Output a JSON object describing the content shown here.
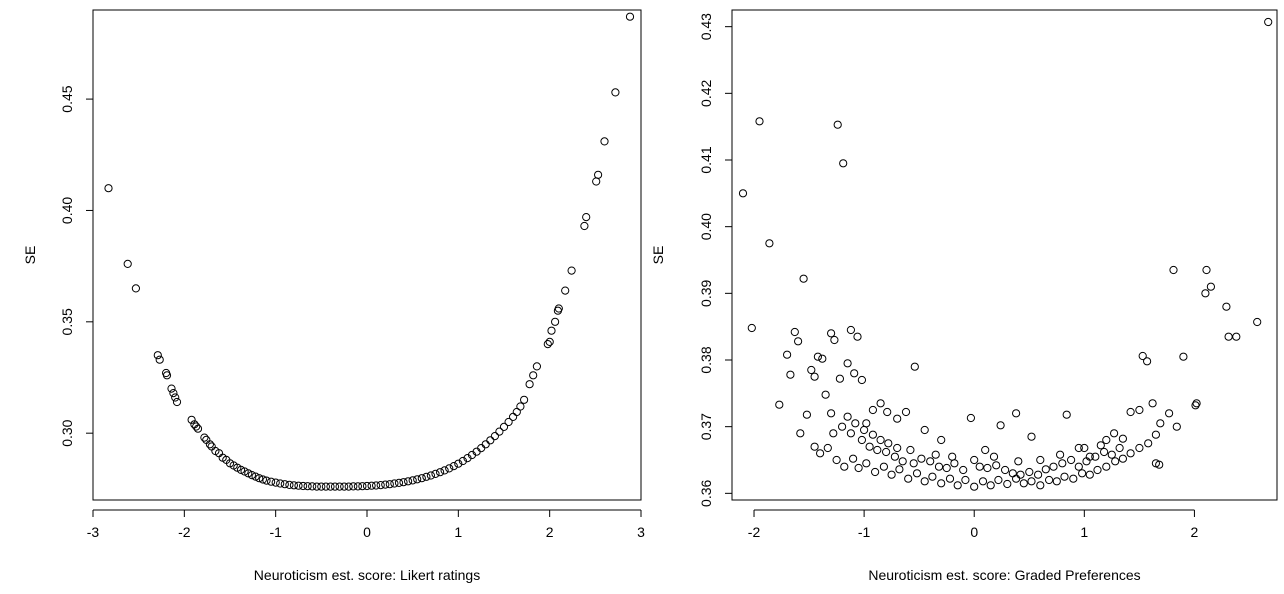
{
  "chart_data": [
    {
      "type": "scatter",
      "title": "",
      "xlabel": "Neuroticism est. score: Likert ratings",
      "ylabel": "SE",
      "xlim": [
        -3.0,
        3.0
      ],
      "ylim": [
        0.27,
        0.49
      ],
      "xticks": [
        -3,
        -2,
        -1,
        0,
        1,
        2,
        3
      ],
      "xtick_labels": [
        "-3",
        "-2",
        "-1",
        "0",
        "1",
        "2",
        "3"
      ],
      "yticks": [
        0.3,
        0.35,
        0.4,
        0.45
      ],
      "ytick_labels": [
        "0.30",
        "0.35",
        "0.40",
        "0.45"
      ],
      "grid": false,
      "legend": "none",
      "marker": "open-circle",
      "points": [
        [
          -2.83,
          0.41
        ],
        [
          -2.62,
          0.376
        ],
        [
          -2.53,
          0.365
        ],
        [
          -2.29,
          0.335
        ],
        [
          -2.27,
          0.333
        ],
        [
          -2.2,
          0.327
        ],
        [
          -2.19,
          0.326
        ],
        [
          -2.14,
          0.32
        ],
        [
          -2.12,
          0.318
        ],
        [
          -2.1,
          0.316
        ],
        [
          -2.08,
          0.314
        ],
        [
          -1.92,
          0.306
        ],
        [
          -1.89,
          0.304
        ],
        [
          -1.87,
          0.303
        ],
        [
          -1.85,
          0.302
        ],
        [
          -1.78,
          0.298
        ],
        [
          -1.76,
          0.297
        ],
        [
          -1.72,
          0.295
        ],
        [
          -1.7,
          0.294
        ],
        [
          -1.66,
          0.292
        ],
        [
          -1.62,
          0.291
        ],
        [
          -1.58,
          0.289
        ],
        [
          -1.54,
          0.288
        ],
        [
          -1.5,
          0.2865
        ],
        [
          -1.46,
          0.2855
        ],
        [
          -1.42,
          0.2845
        ],
        [
          -1.38,
          0.2835
        ],
        [
          -1.34,
          0.2828
        ],
        [
          -1.3,
          0.282
        ],
        [
          -1.26,
          0.2812
        ],
        [
          -1.22,
          0.2805
        ],
        [
          -1.18,
          0.2798
        ],
        [
          -1.14,
          0.2792
        ],
        [
          -1.1,
          0.2787
        ],
        [
          -1.05,
          0.2782
        ],
        [
          -1.0,
          0.2778
        ],
        [
          -0.95,
          0.2774
        ],
        [
          -0.9,
          0.2771
        ],
        [
          -0.85,
          0.2768
        ],
        [
          -0.8,
          0.2766
        ],
        [
          -0.75,
          0.2764
        ],
        [
          -0.7,
          0.2763
        ],
        [
          -0.65,
          0.2762
        ],
        [
          -0.6,
          0.2761
        ],
        [
          -0.55,
          0.276
        ],
        [
          -0.5,
          0.276
        ],
        [
          -0.45,
          0.276
        ],
        [
          -0.4,
          0.276
        ],
        [
          -0.35,
          0.276
        ],
        [
          -0.3,
          0.276
        ],
        [
          -0.25,
          0.276
        ],
        [
          -0.2,
          0.276
        ],
        [
          -0.15,
          0.2761
        ],
        [
          -0.1,
          0.2761
        ],
        [
          -0.05,
          0.2762
        ],
        [
          0.0,
          0.2763
        ],
        [
          0.05,
          0.2764
        ],
        [
          0.1,
          0.2765
        ],
        [
          0.15,
          0.2767
        ],
        [
          0.2,
          0.2769
        ],
        [
          0.25,
          0.2771
        ],
        [
          0.3,
          0.2774
        ],
        [
          0.35,
          0.2777
        ],
        [
          0.4,
          0.278
        ],
        [
          0.45,
          0.2784
        ],
        [
          0.5,
          0.2788
        ],
        [
          0.55,
          0.2793
        ],
        [
          0.6,
          0.2798
        ],
        [
          0.65,
          0.2804
        ],
        [
          0.7,
          0.281
        ],
        [
          0.75,
          0.2817
        ],
        [
          0.8,
          0.2825
        ],
        [
          0.85,
          0.2833
        ],
        [
          0.9,
          0.2842
        ],
        [
          0.95,
          0.2852
        ],
        [
          1.0,
          0.2863
        ],
        [
          1.05,
          0.2875
        ],
        [
          1.1,
          0.2888
        ],
        [
          1.15,
          0.2902
        ],
        [
          1.2,
          0.2917
        ],
        [
          1.25,
          0.2933
        ],
        [
          1.3,
          0.295
        ],
        [
          1.35,
          0.2968
        ],
        [
          1.4,
          0.2987
        ],
        [
          1.45,
          0.3007
        ],
        [
          1.5,
          0.3028
        ],
        [
          1.55,
          0.305
        ],
        [
          1.6,
          0.3073
        ],
        [
          1.64,
          0.3095
        ],
        [
          1.68,
          0.312
        ],
        [
          1.72,
          0.315
        ],
        [
          1.78,
          0.322
        ],
        [
          1.82,
          0.326
        ],
        [
          1.86,
          0.33
        ],
        [
          1.98,
          0.34
        ],
        [
          2.0,
          0.341
        ],
        [
          2.02,
          0.346
        ],
        [
          2.06,
          0.35
        ],
        [
          2.09,
          0.355
        ],
        [
          2.1,
          0.356
        ],
        [
          2.17,
          0.364
        ],
        [
          2.24,
          0.373
        ],
        [
          2.38,
          0.393
        ],
        [
          2.4,
          0.397
        ],
        [
          2.51,
          0.413
        ],
        [
          2.53,
          0.416
        ],
        [
          2.6,
          0.431
        ],
        [
          2.72,
          0.453
        ],
        [
          2.88,
          0.487
        ]
      ]
    },
    {
      "type": "scatter",
      "title": "",
      "xlabel": "Neuroticism est. score: Graded Preferences",
      "ylabel": "SE",
      "xlim": [
        -2.2,
        2.75
      ],
      "ylim": [
        0.359,
        0.4325
      ],
      "xticks": [
        -2,
        -1,
        0,
        1,
        2
      ],
      "xtick_labels": [
        "-2",
        "-1",
        "0",
        "1",
        "2"
      ],
      "yticks": [
        0.36,
        0.37,
        0.38,
        0.39,
        0.4,
        0.41,
        0.42,
        0.43
      ],
      "ytick_labels": [
        "0.36",
        "0.37",
        "0.38",
        "0.39",
        "0.40",
        "0.41",
        "0.42",
        "0.43"
      ],
      "grid": false,
      "legend": "none",
      "marker": "open-circle",
      "points": [
        [
          -2.1,
          0.405
        ],
        [
          -2.02,
          0.3848
        ],
        [
          -1.95,
          0.4158
        ],
        [
          -1.86,
          0.3975
        ],
        [
          -1.77,
          0.3733
        ],
        [
          -1.7,
          0.3808
        ],
        [
          -1.67,
          0.3778
        ],
        [
          -1.63,
          0.3842
        ],
        [
          -1.6,
          0.3828
        ],
        [
          -1.58,
          0.369
        ],
        [
          -1.55,
          0.3922
        ],
        [
          -1.52,
          0.3718
        ],
        [
          -1.48,
          0.3785
        ],
        [
          -1.45,
          0.3775
        ],
        [
          -1.42,
          0.3805
        ],
        [
          -1.38,
          0.3802
        ],
        [
          -1.35,
          0.3748
        ],
        [
          -1.3,
          0.384
        ],
        [
          -1.27,
          0.383
        ],
        [
          -1.24,
          0.4153
        ],
        [
          -1.22,
          0.3772
        ],
        [
          -1.19,
          0.4095
        ],
        [
          -1.15,
          0.3795
        ],
        [
          -1.12,
          0.3845
        ],
        [
          -1.09,
          0.378
        ],
        [
          -1.06,
          0.3835
        ],
        [
          -1.02,
          0.377
        ],
        [
          -0.98,
          0.3705
        ],
        [
          -0.92,
          0.3725
        ],
        [
          -0.85,
          0.3735
        ],
        [
          -0.79,
          0.3722
        ],
        [
          -0.7,
          0.3712
        ],
        [
          -0.62,
          0.3722
        ],
        [
          -0.54,
          0.379
        ],
        [
          -0.45,
          0.3695
        ],
        [
          -0.3,
          0.368
        ],
        [
          -0.03,
          0.3713
        ],
        [
          0.1,
          0.3665
        ],
        [
          0.24,
          0.3702
        ],
        [
          0.38,
          0.372
        ],
        [
          0.52,
          0.3685
        ],
        [
          0.84,
          0.3718
        ],
        [
          0.95,
          0.3668
        ],
        [
          1.05,
          0.3655
        ],
        [
          1.15,
          0.3672
        ],
        [
          1.27,
          0.369
        ],
        [
          1.35,
          0.3682
        ],
        [
          1.42,
          0.3722
        ],
        [
          1.5,
          0.3725
        ],
        [
          1.53,
          0.3806
        ],
        [
          1.57,
          0.3798
        ],
        [
          1.62,
          0.3735
        ],
        [
          1.65,
          0.3688
        ],
        [
          1.69,
          0.3705
        ],
        [
          1.77,
          0.372
        ],
        [
          1.81,
          0.3935
        ],
        [
          1.84,
          0.37
        ],
        [
          1.9,
          0.3805
        ],
        [
          2.01,
          0.3732
        ],
        [
          2.02,
          0.3735
        ],
        [
          2.1,
          0.39
        ],
        [
          2.11,
          0.3935
        ],
        [
          2.15,
          0.391
        ],
        [
          2.29,
          0.388
        ],
        [
          2.31,
          0.3835
        ],
        [
          2.38,
          0.3835
        ],
        [
          2.57,
          0.3857
        ],
        [
          2.67,
          0.4307
        ],
        [
          -1.45,
          0.367
        ],
        [
          -1.4,
          0.366
        ],
        [
          -1.33,
          0.3668
        ],
        [
          -1.25,
          0.365
        ],
        [
          -1.18,
          0.364
        ],
        [
          -1.1,
          0.3652
        ],
        [
          -1.05,
          0.3638
        ],
        [
          -0.98,
          0.3645
        ],
        [
          -0.9,
          0.3632
        ],
        [
          -0.82,
          0.364
        ],
        [
          -0.75,
          0.3628
        ],
        [
          -0.68,
          0.3636
        ],
        [
          -0.6,
          0.3622
        ],
        [
          -0.52,
          0.363
        ],
        [
          -0.45,
          0.3618
        ],
        [
          -0.38,
          0.3625
        ],
        [
          -0.3,
          0.3615
        ],
        [
          -0.22,
          0.3622
        ],
        [
          -0.15,
          0.3612
        ],
        [
          -0.08,
          0.362
        ],
        [
          0.0,
          0.361
        ],
        [
          0.08,
          0.3618
        ],
        [
          0.15,
          0.3612
        ],
        [
          0.22,
          0.362
        ],
        [
          0.3,
          0.3614
        ],
        [
          0.38,
          0.3622
        ],
        [
          0.45,
          0.3615
        ],
        [
          0.52,
          0.3618
        ],
        [
          0.6,
          0.3612
        ],
        [
          0.68,
          0.362
        ],
        [
          0.75,
          0.3618
        ],
        [
          0.82,
          0.3625
        ],
        [
          0.9,
          0.3622
        ],
        [
          0.98,
          0.363
        ],
        [
          1.05,
          0.3628
        ],
        [
          1.12,
          0.3635
        ],
        [
          1.2,
          0.364
        ],
        [
          1.28,
          0.3648
        ],
        [
          1.35,
          0.3652
        ],
        [
          1.42,
          0.366
        ],
        [
          1.5,
          0.3668
        ],
        [
          1.58,
          0.3675
        ],
        [
          1.65,
          0.3645
        ],
        [
          1.68,
          0.3643
        ],
        [
          -1.2,
          0.37
        ],
        [
          -1.12,
          0.369
        ],
        [
          -1.02,
          0.368
        ],
        [
          -0.95,
          0.367
        ],
        [
          -0.88,
          0.3665
        ],
        [
          -0.8,
          0.3662
        ],
        [
          -0.72,
          0.3655
        ],
        [
          -0.65,
          0.3648
        ],
        [
          -0.55,
          0.3645
        ],
        [
          -0.48,
          0.3652
        ],
        [
          -0.4,
          0.3648
        ],
        [
          -0.32,
          0.364
        ],
        [
          -0.25,
          0.3638
        ],
        [
          -0.18,
          0.3645
        ],
        [
          -0.1,
          0.3635
        ],
        [
          0.05,
          0.364
        ],
        [
          0.12,
          0.3638
        ],
        [
          0.2,
          0.3642
        ],
        [
          0.28,
          0.3635
        ],
        [
          0.35,
          0.363
        ],
        [
          0.42,
          0.3628
        ],
        [
          0.5,
          0.3632
        ],
        [
          0.58,
          0.3628
        ],
        [
          0.65,
          0.3636
        ],
        [
          0.72,
          0.364
        ],
        [
          0.8,
          0.3645
        ],
        [
          0.88,
          0.365
        ],
        [
          0.95,
          0.364
        ],
        [
          1.02,
          0.3648
        ],
        [
          1.1,
          0.3655
        ],
        [
          1.18,
          0.3662
        ],
        [
          1.25,
          0.3658
        ],
        [
          1.32,
          0.3668
        ],
        [
          -1.3,
          0.372
        ],
        [
          -1.28,
          0.369
        ],
        [
          -1.15,
          0.3715
        ],
        [
          -1.08,
          0.3705
        ],
        [
          -1.0,
          0.3695
        ],
        [
          -0.92,
          0.3688
        ],
        [
          -0.85,
          0.368
        ],
        [
          -0.78,
          0.3675
        ],
        [
          -0.7,
          0.3668
        ],
        [
          -0.58,
          0.3665
        ],
        [
          -0.35,
          0.3658
        ],
        [
          -0.2,
          0.3655
        ],
        [
          0.0,
          0.365
        ],
        [
          0.18,
          0.3655
        ],
        [
          0.4,
          0.3648
        ],
        [
          0.6,
          0.365
        ],
        [
          0.78,
          0.3658
        ],
        [
          1.0,
          0.3668
        ],
        [
          1.2,
          0.368
        ]
      ]
    }
  ]
}
